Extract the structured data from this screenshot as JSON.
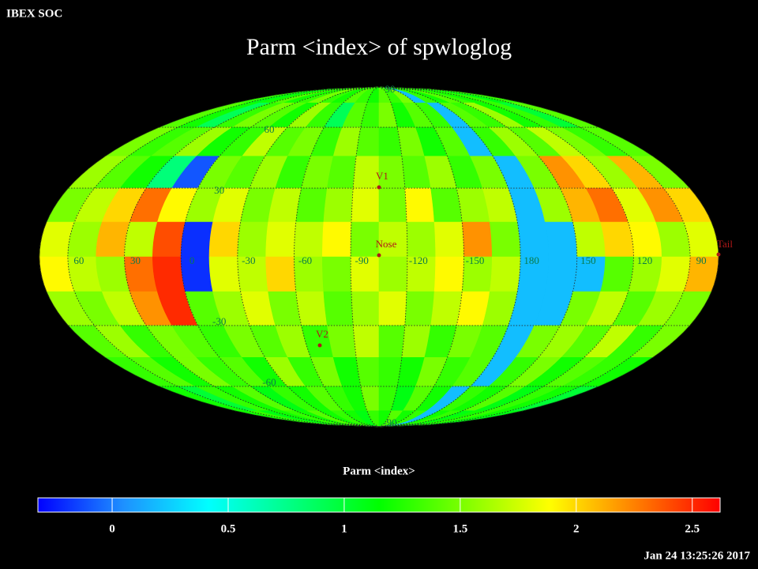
{
  "header": "IBEX SOC",
  "timestamp": "Jan 24 13:25:26 2017",
  "chart_data": {
    "type": "heatmap",
    "projection": "mollweide",
    "title": "Parm  <index> of spwloglog",
    "colorbar_label": "Parm  <index>",
    "clim": [
      -0.32,
      2.62
    ],
    "cticks": [
      0,
      0.5,
      1,
      1.5,
      2,
      2.5
    ],
    "colormap": [
      "#0000ff",
      "#1e90ff",
      "#00ffff",
      "#00ff7f",
      "#00ff00",
      "#7fff00",
      "#ffff00",
      "#ff8000",
      "#ff0000"
    ],
    "xlim": [
      75,
      -285
    ],
    "ylim": [
      -90,
      90
    ],
    "xticks": [
      60,
      30,
      0,
      -30,
      -60,
      -90,
      -120,
      -150,
      180,
      150,
      120,
      90
    ],
    "yticks": [
      90,
      60,
      30,
      -30,
      -60,
      -90
    ],
    "grid": true,
    "annotations": [
      "V1",
      "Nose",
      "V2",
      "Tail"
    ],
    "values": [
      [
        1.3,
        1.1,
        1.2,
        1.4,
        1.2,
        1.3,
        1.5,
        1.3,
        1.2,
        1.4,
        1.3,
        1.2,
        1.4,
        1.3,
        1.5,
        0.2,
        1.3,
        1.2,
        1.4,
        1.3,
        1.2,
        1.3,
        1.1,
        1.3
      ],
      [
        1.4,
        1.2,
        0.9,
        1.3,
        1.5,
        1.4,
        1.2,
        1.6,
        1.3,
        0.9,
        1.4,
        1.3,
        1.5,
        1.2,
        1.4,
        1.3,
        0.2,
        1.4,
        1.3,
        1.6,
        1.2,
        1.3,
        1.0,
        1.4
      ],
      [
        1.5,
        1.3,
        1.4,
        1.6,
        1.2,
        1.3,
        1.7,
        1.4,
        1.5,
        1.3,
        1.6,
        1.4,
        1.3,
        1.5,
        1.2,
        1.4,
        0.2,
        1.3,
        1.6,
        1.4,
        1.7,
        1.5,
        1.3,
        1.4
      ],
      [
        1.6,
        1.4,
        1.2,
        0.8,
        -0.1,
        1.5,
        1.4,
        1.6,
        1.3,
        1.5,
        1.4,
        1.7,
        1.5,
        1.4,
        1.6,
        1.3,
        1.5,
        0.2,
        1.5,
        2.2,
        2.0,
        1.6,
        2.1,
        1.5
      ],
      [
        1.5,
        1.7,
        2.0,
        2.3,
        1.9,
        1.6,
        1.8,
        1.5,
        1.7,
        1.4,
        1.6,
        1.8,
        1.5,
        1.9,
        1.4,
        1.6,
        1.7,
        0.2,
        1.6,
        2.1,
        2.3,
        1.8,
        2.2,
        2.0
      ],
      [
        1.8,
        1.6,
        2.1,
        1.7,
        2.4,
        -0.2,
        2.0,
        1.6,
        1.8,
        1.7,
        1.9,
        1.5,
        1.7,
        1.6,
        1.8,
        2.2,
        1.5,
        0.2,
        0.2,
        1.7,
        2.0,
        1.9,
        1.6,
        1.8
      ],
      [
        1.9,
        1.7,
        1.6,
        2.3,
        2.5,
        -0.2,
        1.8,
        1.7,
        2.0,
        1.6,
        1.5,
        1.8,
        1.6,
        1.7,
        1.9,
        1.6,
        1.7,
        0.2,
        0.2,
        0.2,
        1.4,
        1.6,
        1.8,
        2.1
      ],
      [
        1.6,
        1.5,
        1.7,
        2.2,
        2.5,
        1.4,
        1.6,
        1.8,
        1.5,
        1.7,
        1.4,
        1.6,
        1.8,
        1.5,
        1.7,
        1.9,
        1.6,
        0.2,
        0.2,
        1.5,
        1.7,
        1.4,
        1.6,
        1.5
      ],
      [
        1.4,
        1.6,
        1.3,
        1.5,
        1.4,
        1.3,
        1.5,
        1.4,
        1.6,
        1.3,
        1.5,
        1.7,
        1.4,
        1.6,
        1.3,
        1.5,
        1.4,
        0.2,
        1.5,
        1.6,
        1.4,
        1.7,
        1.3,
        1.5
      ],
      [
        1.3,
        1.4,
        1.2,
        1.5,
        1.3,
        1.4,
        1.2,
        1.6,
        1.3,
        1.5,
        1.2,
        1.4,
        1.3,
        1.2,
        1.5,
        1.3,
        1.4,
        0.2,
        1.3,
        1.5,
        1.2,
        1.4,
        1.3,
        1.2
      ],
      [
        1.2,
        1.0,
        1.3,
        1.2,
        1.4,
        1.1,
        1.3,
        1.2,
        1.4,
        1.3,
        1.2,
        1.5,
        1.3,
        1.1,
        1.4,
        1.2,
        0.2,
        1.3,
        1.2,
        1.4,
        1.1,
        1.3,
        1.2,
        1.0
      ],
      [
        1.2,
        1.3,
        1.1,
        1.2,
        1.3,
        1.2,
        1.4,
        1.2,
        1.3,
        1.2,
        1.1,
        1.3,
        1.2,
        1.4,
        1.2,
        1.3,
        0.2,
        1.2,
        1.3,
        1.1,
        1.2,
        1.3,
        1.2,
        1.1
      ]
    ]
  }
}
